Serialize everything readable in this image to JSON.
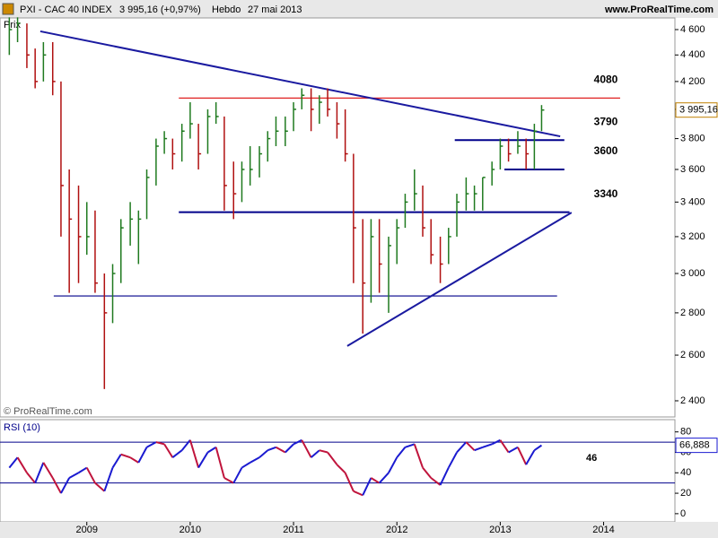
{
  "header": {
    "symbol": "PXI - CAC 40 INDEX",
    "quote": "3 995,16 (+0,97%)",
    "period": "Hebdo",
    "date": "27 mai 2013",
    "site": "www.ProRealTime.com"
  },
  "chart_data": [
    {
      "type": "hlc",
      "series_label": "Prix",
      "watermark": "© ProRealTime.com",
      "log": true,
      "up_color": "#1f7a1f",
      "down_color": "#b01010",
      "x": [
        2008.25,
        2008.33,
        2008.42,
        2008.5,
        2008.58,
        2008.67,
        2008.75,
        2008.83,
        2008.92,
        2009.0,
        2009.08,
        2009.17,
        2009.25,
        2009.33,
        2009.42,
        2009.5,
        2009.58,
        2009.67,
        2009.75,
        2009.83,
        2009.92,
        2010.0,
        2010.08,
        2010.17,
        2010.25,
        2010.33,
        2010.42,
        2010.5,
        2010.58,
        2010.67,
        2010.75,
        2010.83,
        2010.92,
        2011.0,
        2011.08,
        2011.17,
        2011.25,
        2011.33,
        2011.42,
        2011.5,
        2011.58,
        2011.67,
        2011.75,
        2011.83,
        2011.92,
        2012.0,
        2012.08,
        2012.17,
        2012.25,
        2012.33,
        2012.42,
        2012.5,
        2012.58,
        2012.67,
        2012.75,
        2012.83,
        2012.92,
        2013.0,
        2013.08,
        2013.17,
        2013.25,
        2013.33,
        2013.4
      ],
      "high": [
        4700,
        4700,
        4650,
        4450,
        4500,
        4500,
        4200,
        3600,
        3500,
        3400,
        3350,
        3000,
        3050,
        3300,
        3400,
        3350,
        3600,
        3800,
        3850,
        3800,
        3900,
        4050,
        3900,
        4000,
        4050,
        3950,
        3650,
        3650,
        3750,
        3750,
        3850,
        3950,
        3950,
        4050,
        4150,
        4150,
        4100,
        4150,
        4050,
        4000,
        3700,
        3300,
        3300,
        3300,
        3200,
        3300,
        3450,
        3600,
        3500,
        3300,
        3200,
        3250,
        3450,
        3550,
        3500,
        3550,
        3650,
        3800,
        3800,
        3850,
        3800,
        3900,
        4030
      ],
      "low": [
        4400,
        4500,
        4300,
        4150,
        4200,
        4100,
        3200,
        2900,
        2950,
        3100,
        2900,
        2450,
        2750,
        2950,
        3150,
        3050,
        3300,
        3500,
        3700,
        3600,
        3650,
        3800,
        3600,
        3700,
        3900,
        3350,
        3300,
        3400,
        3500,
        3550,
        3650,
        3750,
        3750,
        3850,
        4000,
        3850,
        3900,
        3950,
        3800,
        3650,
        2950,
        2700,
        2850,
        2900,
        2800,
        3050,
        3250,
        3350,
        3200,
        3050,
        2950,
        3050,
        3200,
        3350,
        3350,
        3350,
        3500,
        3600,
        3650,
        3700,
        3600,
        3600,
        3850
      ],
      "close": [
        4600,
        4650,
        4400,
        4200,
        4400,
        4200,
        3500,
        3300,
        3200,
        3200,
        2950,
        2800,
        3000,
        3250,
        3300,
        3300,
        3550,
        3750,
        3800,
        3700,
        3850,
        3900,
        3700,
        3950,
        3950,
        3500,
        3450,
        3600,
        3600,
        3700,
        3800,
        3850,
        3850,
        4000,
        4100,
        4000,
        4050,
        4000,
        3900,
        3700,
        3250,
        2950,
        3200,
        3050,
        3150,
        3250,
        3400,
        3450,
        3250,
        3100,
        3050,
        3200,
        3400,
        3450,
        3450,
        3550,
        3600,
        3750,
        3700,
        3750,
        3700,
        3850,
        3995.16
      ],
      "last_value_label": "3 995,16",
      "xlim": [
        2008.16,
        2014.69
      ],
      "xticks": [
        2009,
        2010,
        2011,
        2012,
        2013,
        2014
      ],
      "ylim": [
        2333,
        4695
      ],
      "yticks": [
        {
          "value": 2400,
          "label": "2 400"
        },
        {
          "value": 2600,
          "label": "2 600"
        },
        {
          "value": 2800,
          "label": "2 800"
        },
        {
          "value": 3000,
          "label": "3 000"
        },
        {
          "value": 3200,
          "label": "3 200"
        },
        {
          "value": 3400,
          "label": "3 400"
        },
        {
          "value": 3600,
          "label": "3 600"
        },
        {
          "value": 3800,
          "label": "3 800"
        },
        {
          "value": 4000,
          "label": "4 000"
        },
        {
          "value": 4200,
          "label": "4 200"
        },
        {
          "value": 4400,
          "label": "4 400"
        },
        {
          "value": 4600,
          "label": "4 600"
        }
      ],
      "levels": [
        {
          "value": 4080,
          "label": "4080",
          "from": 2009.89,
          "to": 2014.16,
          "color": "#e02020",
          "style": "thin"
        },
        {
          "value": 3790,
          "label": "3790",
          "from": 2012.56,
          "to": 2013.62,
          "color": "#00008b",
          "style": "thick"
        },
        {
          "value": 3600,
          "label": "3600",
          "from": 2013.04,
          "to": 2013.62,
          "color": "#00008b",
          "style": "thick"
        },
        {
          "value": 3340,
          "label": "3340",
          "from": 2009.89,
          "to": 2013.67,
          "color": "#00008b",
          "style": "thick"
        },
        {
          "value": 2884,
          "from": 2008.68,
          "to": 2013.55,
          "color": "#00008b",
          "style": "thin"
        }
      ],
      "trendlines": [
        {
          "start": [
            2008.55,
            4586
          ],
          "end": [
            2013.58,
            3815
          ],
          "color": "#1a1aa0"
        },
        {
          "start": [
            2011.52,
            2642
          ],
          "end": [
            2013.69,
            3338
          ],
          "color": "#1a1aa0"
        }
      ]
    },
    {
      "type": "line",
      "title": "RSI (10)",
      "up_color": "#1a1ad0",
      "down_color": "#c0143c",
      "x": [
        2008.25,
        2008.33,
        2008.42,
        2008.5,
        2008.58,
        2008.67,
        2008.75,
        2008.83,
        2008.92,
        2009.0,
        2009.08,
        2009.17,
        2009.25,
        2009.33,
        2009.42,
        2009.5,
        2009.58,
        2009.67,
        2009.75,
        2009.83,
        2009.92,
        2010.0,
        2010.08,
        2010.17,
        2010.25,
        2010.33,
        2010.42,
        2010.5,
        2010.58,
        2010.67,
        2010.75,
        2010.83,
        2010.92,
        2011.0,
        2011.08,
        2011.17,
        2011.25,
        2011.33,
        2011.42,
        2011.5,
        2011.58,
        2011.67,
        2011.75,
        2011.83,
        2011.92,
        2012.0,
        2012.08,
        2012.17,
        2012.25,
        2012.33,
        2012.42,
        2012.5,
        2012.58,
        2012.67,
        2012.75,
        2012.83,
        2012.92,
        2013.0,
        2013.08,
        2013.17,
        2013.25,
        2013.33,
        2013.4
      ],
      "values": [
        45,
        55,
        40,
        30,
        50,
        35,
        20,
        35,
        40,
        45,
        30,
        22,
        45,
        58,
        55,
        50,
        65,
        70,
        68,
        55,
        62,
        72,
        45,
        60,
        65,
        35,
        30,
        45,
        50,
        55,
        62,
        65,
        60,
        68,
        72,
        55,
        62,
        60,
        48,
        40,
        22,
        18,
        35,
        30,
        40,
        55,
        65,
        68,
        45,
        35,
        28,
        45,
        60,
        70,
        62,
        65,
        68,
        72,
        60,
        65,
        48,
        62,
        66.888
      ],
      "last_value_label": "66,888",
      "annotation": "46",
      "xlim": [
        2008.16,
        2014.69
      ],
      "ylim": [
        -8,
        92
      ],
      "yticks": [
        0,
        20,
        40,
        60,
        80
      ],
      "bands": [
        30,
        70
      ],
      "band_color": "#00008b"
    }
  ]
}
